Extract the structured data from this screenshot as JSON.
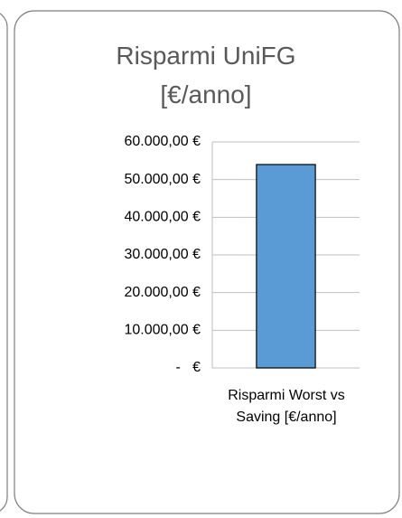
{
  "chart_data": {
    "type": "bar",
    "title": "Risparmi UniFG [€/anno]",
    "categories": [
      "Risparmi Worst vs Saving [€/anno]"
    ],
    "values": [
      54000
    ],
    "color": "#5b9bd5",
    "ylim": [
      0,
      60000
    ],
    "yticks": [
      {
        "value": 0,
        "label": "-   €"
      },
      {
        "value": 10000,
        "label": "10.000,00 €"
      },
      {
        "value": 20000,
        "label": "20.000,00 €"
      },
      {
        "value": 30000,
        "label": "30.000,00 €"
      },
      {
        "value": 40000,
        "label": "40.000,00 €"
      },
      {
        "value": 50000,
        "label": "50.000,00 €"
      },
      {
        "value": 60000,
        "label": "60.000,00 €"
      }
    ],
    "grid": true
  }
}
